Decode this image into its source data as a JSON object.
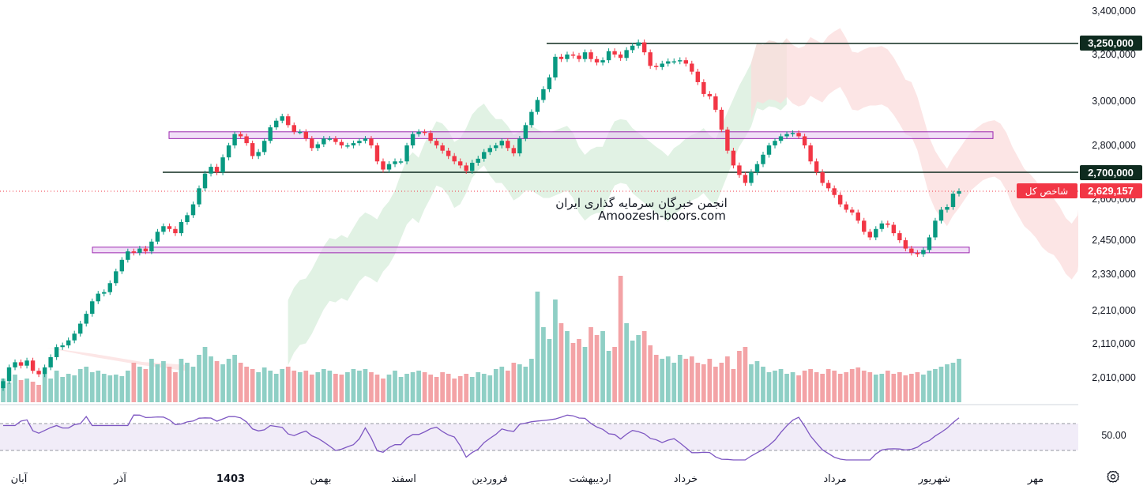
{
  "watermark": {
    "line1": "انجمن خبرگان سرمایه گذاری ایران",
    "line2": "Amoozesh-boors.com"
  },
  "price_axis": {
    "ticks": [
      "3,400,000",
      "3,200,000",
      "3,000,000",
      "2,800,000",
      "2,600,000",
      "2,450,000",
      "2,330,000",
      "2,210,000",
      "2,110,000",
      "2,010,000"
    ]
  },
  "rsi_axis": {
    "tick": "50.00"
  },
  "time_axis": {
    "labels": [
      "آبان",
      "آذر",
      "1403",
      "بهمن",
      "اسفند",
      "فروردین",
      "اردیبهشت",
      "خرداد",
      "مرداد",
      "شهریور",
      "مهر"
    ]
  },
  "tags": {
    "level_3250": "3,250,000",
    "level_2700": "2,700,000",
    "last_price": "2,629,157",
    "symbol": "شاخص کل"
  },
  "settings_icon": "gear-icon",
  "colors": {
    "up": "#089981",
    "down": "#f23645",
    "vol_up": "#8fcfc5",
    "vol_down": "#f3a3a6",
    "zone": "#e7c9f2",
    "zone_border": "#9c27b0",
    "rsi": "#7e57c2",
    "rsi_band": "#ede7f6",
    "cloud_green": "#d7eedb",
    "cloud_red": "#fbdcdc",
    "last_price": "#f23645",
    "level_tag": "#0e2b1f"
  },
  "chart_data": {
    "type": "candlestick",
    "scale": "log",
    "horizontal_levels": [
      3250000,
      2700000
    ],
    "zones": [
      [
        2830000,
        2860000
      ],
      [
        2405000,
        2425000
      ]
    ],
    "last_price": 2629157,
    "closes": [
      2000000,
      2040000,
      2055000,
      2045000,
      2060000,
      2030000,
      2020000,
      2040000,
      2070000,
      2100000,
      2105000,
      2120000,
      2140000,
      2170000,
      2200000,
      2240000,
      2265000,
      2270000,
      2300000,
      2340000,
      2380000,
      2410000,
      2405000,
      2420000,
      2410000,
      2445000,
      2480000,
      2500000,
      2490000,
      2475000,
      2515000,
      2540000,
      2580000,
      2640000,
      2695000,
      2720000,
      2700000,
      2755000,
      2800000,
      2850000,
      2840000,
      2810000,
      2760000,
      2775000,
      2820000,
      2880000,
      2910000,
      2930000,
      2890000,
      2860000,
      2860000,
      2830000,
      2790000,
      2805000,
      2830000,
      2830000,
      2815000,
      2800000,
      2800000,
      2810000,
      2820000,
      2830000,
      2800000,
      2740000,
      2710000,
      2730000,
      2740000,
      2740000,
      2800000,
      2850000,
      2860000,
      2855000,
      2820000,
      2800000,
      2780000,
      2760000,
      2740000,
      2725000,
      2705000,
      2735000,
      2750000,
      2775000,
      2790000,
      2800000,
      2820000,
      2790000,
      2770000,
      2830000,
      2890000,
      2950000,
      3005000,
      3050000,
      3100000,
      3190000,
      3180000,
      3200000,
      3195000,
      3180000,
      3210000,
      3180000,
      3165000,
      3175000,
      3215000,
      3200000,
      3185000,
      3220000,
      3240000,
      3255000,
      3210000,
      3150000,
      3145000,
      3160000,
      3170000,
      3170000,
      3175000,
      3160000,
      3125000,
      3080000,
      3030000,
      3020000,
      2960000,
      2870000,
      2780000,
      2725000,
      2690000,
      2660000,
      2700000,
      2730000,
      2765000,
      2800000,
      2820000,
      2840000,
      2850000,
      2855000,
      2840000,
      2800000,
      2740000,
      2700000,
      2660000,
      2640000,
      2615000,
      2580000,
      2560000,
      2550000,
      2520000,
      2480000,
      2460000,
      2490000,
      2510000,
      2505000,
      2475000,
      2450000,
      2420000,
      2405000,
      2400000,
      2415000,
      2460000,
      2520000,
      2560000,
      2570000,
      2620000,
      2629157
    ],
    "volume_level": [
      0.3,
      0.25,
      0.35,
      0.28,
      0.3,
      0.26,
      0.22,
      0.35,
      0.3,
      0.4,
      0.32,
      0.36,
      0.34,
      0.42,
      0.45,
      0.38,
      0.4,
      0.36,
      0.34,
      0.35,
      0.33,
      0.4,
      0.5,
      0.45,
      0.42,
      0.55,
      0.48,
      0.52,
      0.45,
      0.38,
      0.55,
      0.5,
      0.45,
      0.6,
      0.7,
      0.58,
      0.52,
      0.48,
      0.55,
      0.6,
      0.5,
      0.45,
      0.42,
      0.38,
      0.44,
      0.4,
      0.36,
      0.42,
      0.45,
      0.4,
      0.38,
      0.4,
      0.35,
      0.38,
      0.42,
      0.4,
      0.36,
      0.35,
      0.38,
      0.42,
      0.4,
      0.42,
      0.38,
      0.35,
      0.3,
      0.35,
      0.4,
      0.32,
      0.36,
      0.38,
      0.4,
      0.38,
      0.35,
      0.32,
      0.38,
      0.36,
      0.3,
      0.33,
      0.36,
      0.32,
      0.38,
      0.36,
      0.34,
      0.42,
      0.45,
      0.4,
      0.5,
      0.48,
      0.45,
      0.55,
      1.4,
      0.95,
      0.8,
      1.3,
      1.0,
      0.9,
      0.75,
      0.8,
      0.7,
      0.95,
      0.85,
      0.9,
      0.65,
      0.7,
      1.6,
      1.0,
      0.78,
      0.85,
      0.9,
      0.72,
      0.6,
      0.55,
      0.58,
      0.5,
      0.6,
      0.55,
      0.58,
      0.5,
      0.48,
      0.55,
      0.45,
      0.5,
      0.58,
      0.42,
      0.65,
      0.7,
      0.48,
      0.52,
      0.45,
      0.38,
      0.4,
      0.42,
      0.36,
      0.38,
      0.34,
      0.4,
      0.42,
      0.38,
      0.36,
      0.42,
      0.4,
      0.36,
      0.38,
      0.42,
      0.44,
      0.4,
      0.38,
      0.35,
      0.36,
      0.4,
      0.36,
      0.38,
      0.34,
      0.36,
      0.38,
      0.35,
      0.4,
      0.42,
      0.45,
      0.48,
      0.5,
      0.55
    ]
  }
}
